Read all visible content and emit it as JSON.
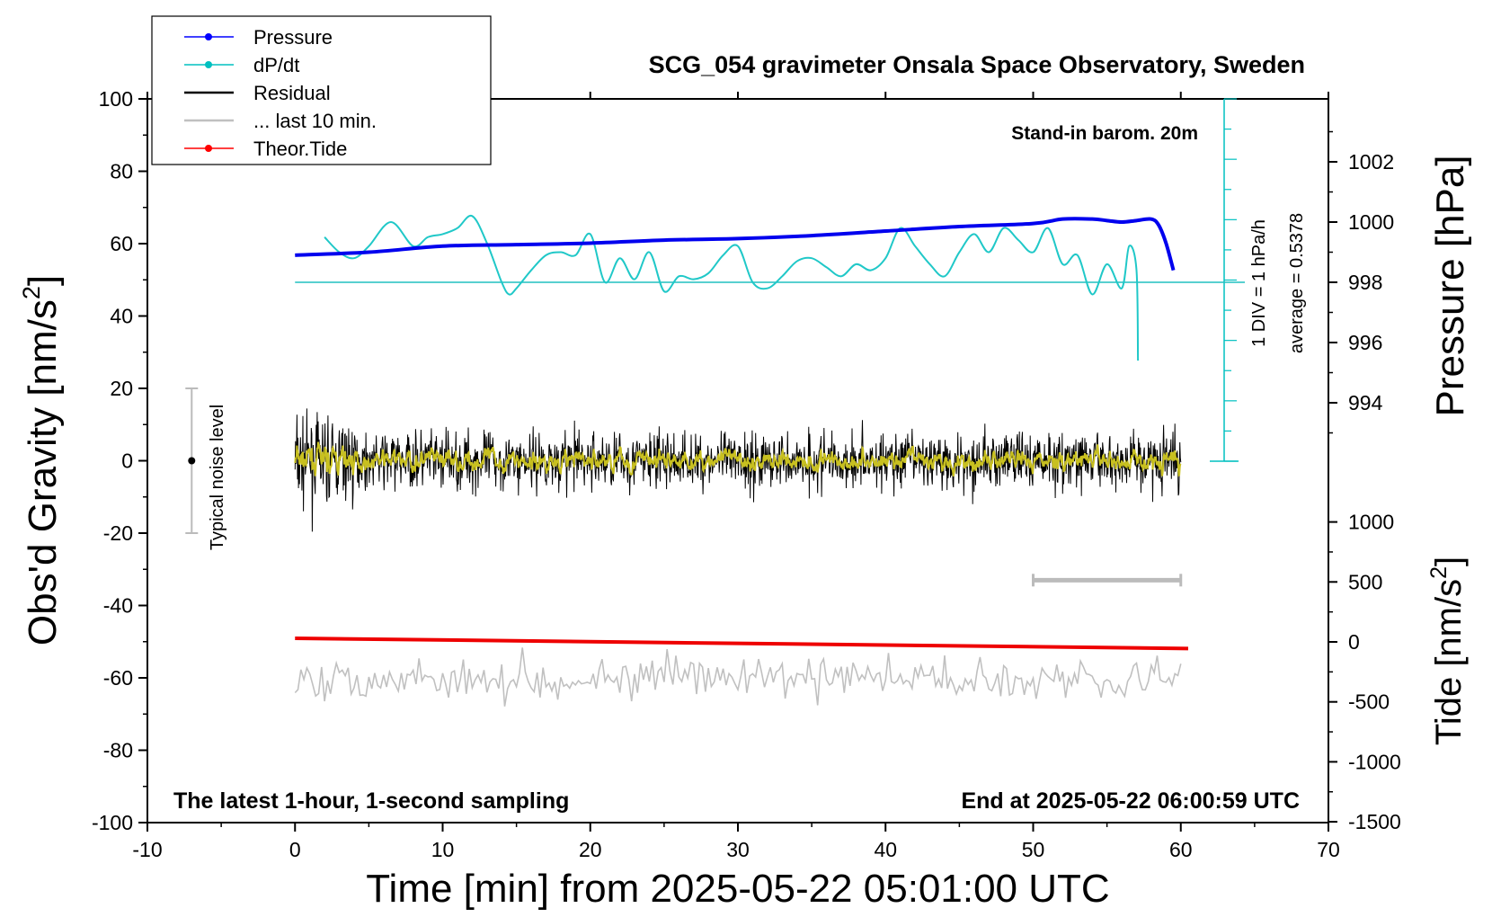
{
  "chart_data": {
    "type": "line",
    "title": "SCG_054 gravimeter Onsala Space Observatory, Sweden",
    "xlabel": "Time [min] from 2025-05-22 05:01:00 UTC",
    "ylabel": "Obs'd Gravity [nm/s",
    "ylabel_sup": "2",
    "ylabel_end": "]",
    "y2label": "Pressure [hPa]",
    "y3label": "Tide [nm/s",
    "y3label_sup": "2",
    "y3label_end": "]",
    "xlim": [
      -10,
      70
    ],
    "ylim": [
      -100,
      100
    ],
    "pressure_lim": [
      992,
      1004
    ],
    "tide_lim": [
      -1500,
      1000
    ],
    "x_ticks": [
      "-10",
      "0",
      "10",
      "20",
      "30",
      "40",
      "50",
      "60",
      "70"
    ],
    "y_ticks": [
      "-100",
      "-80",
      "-60",
      "-40",
      "-20",
      "0",
      "20",
      "40",
      "60",
      "80",
      "100"
    ],
    "pressure_ticks": [
      "994",
      "996",
      "998",
      "1000",
      "1002"
    ],
    "tide_ticks": [
      "-1500",
      "-1000",
      "-500",
      "0",
      "500",
      "1000"
    ],
    "grid": false,
    "legend_position": "top-left",
    "legend": [
      {
        "name": "Pressure",
        "color": "#0000ff",
        "marker": true
      },
      {
        "name": "dP/dt",
        "color": "#00c0c0",
        "marker": true
      },
      {
        "name": "Residual",
        "color": "#000000",
        "marker": false
      },
      {
        "name": "... last 10 min.",
        "color": "#c0c0c0",
        "marker": false
      },
      {
        "name": "Theor.Tide",
        "color": "#ff0000",
        "marker": true
      }
    ],
    "annotations": {
      "barometer": "Stand-in barom. 20m",
      "div_note": "1 DIV = 1 hPa/h",
      "average_note": "average = 0.5378",
      "noise_label": "Typical noise level",
      "bottom_left": "The latest 1-hour, 1-second sampling",
      "bottom_right": "End at 2025-05-22 06:00:59 UTC"
    },
    "series": [
      {
        "name": "Pressure",
        "axis": "pressure_hPa",
        "x": [
          0,
          5,
          10,
          15,
          20,
          25,
          30,
          35,
          40,
          45,
          50,
          52,
          54,
          55,
          56,
          57,
          58,
          58.5,
          59,
          59.5
        ],
        "values": [
          998.9,
          999.0,
          999.2,
          999.25,
          999.3,
          999.4,
          999.45,
          999.55,
          999.7,
          999.85,
          999.95,
          1000.1,
          1000.1,
          1000.05,
          1000.0,
          1000.05,
          1000.1,
          999.9,
          999.3,
          998.4
        ]
      },
      {
        "name": "dP/dt",
        "axis": "pressure_hPa",
        "average_line": 998.0,
        "x": [
          2,
          3,
          4,
          5,
          6.5,
          8,
          9,
          10,
          11,
          12,
          13,
          14,
          14.5,
          15,
          16,
          17,
          18,
          19,
          20,
          21,
          22,
          23,
          24,
          25,
          26,
          27,
          28,
          29,
          30,
          31,
          32,
          33,
          34,
          35,
          36,
          37,
          38,
          39,
          40,
          41,
          42,
          43,
          44,
          45,
          46,
          47,
          48,
          49,
          50,
          51,
          52,
          53,
          54,
          55,
          56,
          56.5,
          57,
          57.1
        ],
        "values": [
          999.5,
          999.0,
          998.8,
          999.2,
          1000.0,
          999.2,
          999.5,
          999.6,
          999.8,
          1000.2,
          999.3,
          998.0,
          997.6,
          997.8,
          998.4,
          998.9,
          999.0,
          998.9,
          999.6,
          998.0,
          998.8,
          998.1,
          999.0,
          997.7,
          998.2,
          998.1,
          998.3,
          998.9,
          999.2,
          998.0,
          997.8,
          998.2,
          998.7,
          998.8,
          998.5,
          998.2,
          998.6,
          998.4,
          998.8,
          999.8,
          999.2,
          998.6,
          998.2,
          999.0,
          999.6,
          999.0,
          999.8,
          999.4,
          999.0,
          999.8,
          998.6,
          998.9,
          997.6,
          998.6,
          997.8,
          999.2,
          998.4,
          995.4
        ]
      },
      {
        "name": "Residual",
        "axis": "gravity_nm_s2",
        "x_range": [
          0,
          60
        ],
        "spread": [
          -21,
          20
        ],
        "level": 0
      },
      {
        "name": "... last 10 min.",
        "axis": "gravity_nm_s2",
        "x_range": [
          0,
          60
        ],
        "level": -60,
        "spread": [
          -72,
          -50
        ]
      },
      {
        "name": "Theor.Tide",
        "axis": "tide_nm_s2",
        "x": [
          0,
          60.5
        ],
        "values": [
          30,
          -55
        ]
      }
    ],
    "noise_bar": {
      "x": -7,
      "center": 0,
      "range": [
        -20,
        20
      ]
    },
    "scale_bar": {
      "x_range": [
        50,
        60
      ],
      "y": -33
    }
  }
}
